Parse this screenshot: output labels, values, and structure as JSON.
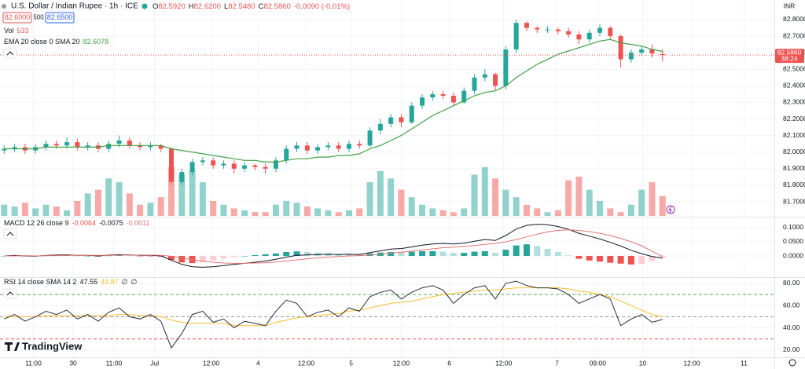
{
  "chart_data": [
    {
      "type": "candlestick",
      "title": "U.S. Dollar / Indian Rupee · 1h · ICE",
      "quote": [
        {
          "key": "O",
          "value": "82.5920"
        },
        {
          "key": "H",
          "value": "82.6200"
        },
        {
          "key": "L",
          "value": "82.5480"
        },
        {
          "key": "C",
          "value": "82.5860"
        }
      ],
      "change": "-0.0090 (-0.01%)",
      "bid": "82.6000",
      "spread": "500",
      "ask": "82.6500",
      "currency": "INR",
      "last_price_label": "82.5860",
      "countdown": "38:24",
      "up_color": "#26a69a",
      "down_color": "#ef5350",
      "open": [
        82.01,
        82.02,
        82.03,
        82.01,
        82.03,
        82.05,
        82.04,
        82.06,
        82.03,
        82.04,
        82.02,
        82.05,
        82.07,
        82.04,
        82.03,
        82.04,
        82.02,
        81.82,
        81.88,
        81.94,
        81.95,
        81.92,
        81.93,
        81.9,
        81.92,
        81.91,
        81.9,
        81.95,
        82.02,
        82.04,
        82.01,
        82.03,
        82.04,
        82.02,
        82.05,
        82.04,
        82.13,
        82.17,
        82.21,
        82.18,
        82.28,
        82.33,
        82.35,
        82.34,
        82.3,
        82.37,
        82.45,
        82.47,
        82.4,
        82.62,
        82.78,
        82.75,
        82.74,
        82.74,
        82.73,
        82.71,
        82.68,
        82.72,
        82.75,
        82.7,
        82.56,
        82.6,
        82.62,
        82.592
      ],
      "high": [
        82.04,
        82.05,
        82.05,
        82.05,
        82.07,
        82.07,
        82.09,
        82.08,
        82.06,
        82.06,
        82.07,
        82.1,
        82.09,
        82.06,
        82.06,
        82.05,
        82.03,
        81.9,
        81.96,
        81.97,
        81.97,
        81.95,
        81.95,
        81.94,
        81.93,
        81.93,
        81.97,
        82.04,
        82.06,
        82.06,
        82.05,
        82.06,
        82.06,
        82.07,
        82.07,
        82.15,
        82.2,
        82.23,
        82.23,
        82.3,
        82.35,
        82.37,
        82.37,
        82.36,
        82.39,
        82.47,
        82.5,
        82.48,
        82.64,
        82.8,
        82.79,
        82.76,
        82.76,
        82.75,
        82.75,
        82.73,
        82.74,
        82.77,
        82.76,
        82.71,
        82.62,
        82.64,
        82.65,
        82.62
      ],
      "low": [
        81.99,
        82.0,
        81.99,
        81.99,
        82.01,
        82.02,
        82.02,
        82.01,
        82.01,
        82.0,
        82.0,
        82.03,
        82.02,
        82.01,
        82.01,
        82.0,
        81.8,
        81.8,
        81.86,
        81.92,
        81.9,
        81.9,
        81.87,
        81.88,
        81.89,
        81.87,
        81.88,
        81.93,
        82.0,
        81.99,
        81.99,
        82.01,
        82.0,
        82.0,
        82.02,
        82.03,
        82.11,
        82.15,
        82.15,
        82.17,
        82.26,
        82.31,
        82.32,
        82.28,
        82.29,
        82.35,
        82.43,
        82.37,
        82.38,
        82.6,
        82.73,
        82.72,
        82.72,
        82.71,
        82.69,
        82.65,
        82.66,
        82.7,
        82.68,
        82.51,
        82.54,
        82.58,
        82.57,
        82.548
      ],
      "close": [
        82.02,
        82.03,
        82.01,
        82.03,
        82.05,
        82.04,
        82.06,
        82.03,
        82.04,
        82.02,
        82.05,
        82.07,
        82.04,
        82.03,
        82.04,
        82.02,
        81.82,
        81.88,
        81.94,
        81.95,
        81.92,
        81.93,
        81.9,
        81.92,
        81.91,
        81.9,
        81.95,
        82.02,
        82.04,
        82.01,
        82.03,
        82.04,
        82.02,
        82.05,
        82.04,
        82.13,
        82.17,
        82.21,
        82.18,
        82.28,
        82.33,
        82.35,
        82.34,
        82.3,
        82.37,
        82.45,
        82.47,
        82.4,
        82.62,
        82.78,
        82.75,
        82.74,
        82.74,
        82.73,
        82.71,
        82.68,
        82.72,
        82.75,
        82.7,
        82.56,
        82.6,
        82.62,
        82.595,
        82.586
      ],
      "volume": {
        "name": "Vol",
        "values": [
          300,
          250,
          350,
          200,
          300,
          250,
          150,
          400,
          600,
          700,
          1000,
          900,
          600,
          300,
          350,
          500,
          1300,
          1100,
          1200,
          900,
          400,
          300,
          200,
          150,
          100,
          100,
          300,
          400,
          350,
          250,
          200,
          150,
          100,
          150,
          200,
          900,
          1200,
          1000,
          700,
          500,
          300,
          200,
          150,
          100,
          200,
          1100,
          1300,
          1000,
          700,
          500,
          300,
          200,
          100,
          150,
          950,
          1050,
          700,
          400,
          200,
          100,
          300,
          700,
          900,
          533
        ]
      },
      "ema": {
        "name": "EMA 20 close 0 SMA 20",
        "color": "#43a047",
        "values": [
          82.02,
          82.02,
          82.02,
          82.02,
          82.03,
          82.03,
          82.03,
          82.03,
          82.03,
          82.03,
          82.04,
          82.04,
          82.04,
          82.04,
          82.04,
          82.04,
          82.02,
          82.01,
          82.0,
          81.99,
          81.98,
          81.97,
          81.96,
          81.95,
          81.95,
          81.94,
          81.94,
          81.95,
          81.96,
          81.96,
          81.97,
          81.97,
          81.98,
          81.98,
          81.99,
          82.02,
          82.04,
          82.07,
          82.1,
          82.14,
          82.18,
          82.22,
          82.25,
          82.28,
          82.31,
          82.34,
          82.36,
          82.37,
          82.4,
          82.45,
          82.49,
          82.53,
          82.56,
          82.59,
          82.61,
          82.63,
          82.65,
          82.67,
          82.68,
          82.66,
          82.65,
          82.64,
          82.62,
          82.6078
        ]
      },
      "ylim": [
        81.615,
        82.918
      ],
      "yticks": [
        {
          "value": 82.8,
          "label": "82.8000"
        },
        {
          "value": 82.7,
          "label": "82.7000"
        },
        {
          "value": 82.6,
          "label": "82.6000"
        },
        {
          "value": 82.5,
          "label": "82.5000"
        },
        {
          "value": 82.4,
          "label": "82.4000"
        },
        {
          "value": 82.3,
          "label": "82.3000"
        },
        {
          "value": 82.2,
          "label": "82.2000"
        },
        {
          "value": 82.1,
          "label": "82.1000"
        },
        {
          "value": 82,
          "label": "82.0000"
        },
        {
          "value": 81.9,
          "label": "81.9000"
        },
        {
          "value": 81.8,
          "label": "81.8000"
        },
        {
          "value": 81.7,
          "label": "81.7000"
        }
      ]
    },
    {
      "type": "macd",
      "name": "MACD 12 26 close 9",
      "histogram": {
        "values": [
          0,
          0.002,
          -0.001,
          -0.001,
          0.001,
          0.002,
          0.002,
          0,
          0,
          -0.002,
          0.001,
          0.002,
          0.001,
          -0.001,
          -0.001,
          -0.002,
          -0.014,
          -0.023,
          -0.025,
          -0.022,
          -0.016,
          -0.009,
          -0.004,
          0,
          0.003,
          0.006,
          0.009,
          0.014,
          0.016,
          0.014,
          0.012,
          0.01,
          0.007,
          0.006,
          0.004,
          0.009,
          0.012,
          0.014,
          0.013,
          0.015,
          0.017,
          0.017,
          0.015,
          0.011,
          0.011,
          0.015,
          0.017,
          0.011,
          0.022,
          0.037,
          0.041,
          0.035,
          0.025,
          0.014,
          0.002,
          -0.01,
          -0.016,
          -0.02,
          -0.024,
          -0.027,
          -0.03,
          -0.028,
          -0.018,
          -0.0064
        ]
      },
      "macd": {
        "color": "#131722",
        "values": [
          0,
          0.002,
          0,
          -0.001,
          0.002,
          0.003,
          0.004,
          0.002,
          0.002,
          0,
          0.003,
          0.005,
          0.004,
          0.002,
          0.002,
          0,
          -0.015,
          -0.03,
          -0.038,
          -0.04,
          -0.038,
          -0.034,
          -0.03,
          -0.026,
          -0.022,
          -0.018,
          -0.012,
          -0.004,
          0.002,
          0.004,
          0.005,
          0.006,
          0.005,
          0.006,
          0.005,
          0.012,
          0.018,
          0.024,
          0.026,
          0.032,
          0.038,
          0.042,
          0.044,
          0.042,
          0.045,
          0.052,
          0.058,
          0.055,
          0.072,
          0.095,
          0.108,
          0.112,
          0.11,
          0.104,
          0.094,
          0.08,
          0.07,
          0.06,
          0.048,
          0.035,
          0.02,
          0.008,
          -0.002,
          -0.0075
        ]
      },
      "signal": {
        "color": "#e57373",
        "values": [
          0,
          0,
          0.001,
          0,
          0.001,
          0.001,
          0.002,
          0.002,
          0.002,
          0.002,
          0.002,
          0.003,
          0.003,
          0.003,
          0.003,
          0.002,
          -0.001,
          -0.007,
          -0.013,
          -0.018,
          -0.022,
          -0.025,
          -0.026,
          -0.026,
          -0.025,
          -0.024,
          -0.021,
          -0.018,
          -0.014,
          -0.01,
          -0.007,
          -0.004,
          -0.002,
          0,
          0.001,
          0.003,
          0.006,
          0.01,
          0.013,
          0.017,
          0.021,
          0.025,
          0.029,
          0.031,
          0.034,
          0.037,
          0.041,
          0.044,
          0.05,
          0.058,
          0.067,
          0.077,
          0.085,
          0.09,
          0.092,
          0.09,
          0.086,
          0.08,
          0.072,
          0.062,
          0.05,
          0.036,
          0.016,
          -0.0011
        ]
      },
      "ylim": [
        -0.072,
        0.133
      ],
      "yticks": [
        {
          "value": 0.1,
          "label": "0.1000"
        },
        {
          "value": 0.05,
          "label": "0.0500"
        },
        {
          "value": 0,
          "label": "0.0000"
        }
      ]
    },
    {
      "type": "rsi",
      "name": "RSI 14 close SMA 14 2",
      "rsi": {
        "color": "#2a2e39",
        "values": [
          48,
          52,
          46,
          50,
          55,
          52,
          56,
          48,
          52,
          46,
          54,
          58,
          50,
          48,
          52,
          46,
          22,
          35,
          52,
          55,
          45,
          48,
          40,
          46,
          44,
          42,
          55,
          65,
          62,
          50,
          54,
          56,
          50,
          58,
          55,
          68,
          72,
          74,
          66,
          72,
          76,
          78,
          74,
          62,
          70,
          76,
          78,
          66,
          80,
          82,
          78,
          76,
          76,
          75,
          70,
          62,
          66,
          70,
          66,
          42,
          48,
          52,
          45,
          47.55
        ]
      },
      "sma": {
        "color": "#fbc02d",
        "values": [
          50,
          50,
          50,
          50,
          51,
          51,
          51,
          51,
          51,
          51,
          51,
          52,
          52,
          51,
          51,
          50,
          47,
          45,
          44,
          44,
          44,
          44,
          42,
          42,
          42,
          42,
          45,
          47,
          49,
          50,
          51,
          52,
          53,
          55,
          56,
          58,
          60,
          62,
          63,
          64,
          66,
          68,
          70,
          71,
          72,
          73,
          74,
          74,
          75,
          76,
          76,
          76,
          76,
          76,
          75,
          73,
          72,
          70,
          68,
          64,
          60,
          56,
          52,
          49.87
        ]
      },
      "extra_values": [
        "∅",
        "∅"
      ],
      "bands": [
        {
          "value": 70,
          "color": "#4caf50"
        },
        {
          "value": 50,
          "color": "#9598a1"
        },
        {
          "value": 30,
          "color": "#ef5350"
        }
      ],
      "ylim": [
        13.6,
        84.9
      ],
      "yticks": [
        {
          "value": 80,
          "label": "80.00"
        },
        {
          "value": 60,
          "label": "60.00"
        },
        {
          "value": 40,
          "label": "40.00"
        },
        {
          "value": 20,
          "label": "20.00"
        }
      ],
      "xlim": [
        -0.4,
        73.7
      ],
      "xticks": [
        {
          "value": 2.8,
          "label": "11:00"
        },
        {
          "value": 6.6,
          "label": "30"
        },
        {
          "value": 10.5,
          "label": "11:00"
        },
        {
          "value": 14.4,
          "label": "Jul"
        },
        {
          "value": 19.8,
          "label": "12:00"
        },
        {
          "value": 24.3,
          "label": "4"
        },
        {
          "value": 28.9,
          "label": "12:00"
        },
        {
          "value": 33.2,
          "label": "5"
        },
        {
          "value": 38.0,
          "label": "12:00"
        },
        {
          "value": 42.6,
          "label": "6"
        },
        {
          "value": 47.8,
          "label": "12:00"
        },
        {
          "value": 52.9,
          "label": "7"
        },
        {
          "value": 56.8,
          "label": "09:00"
        },
        {
          "value": 61.1,
          "label": "10"
        },
        {
          "value": 65.8,
          "label": "12:00"
        },
        {
          "value": 70.8,
          "label": "11"
        }
      ]
    }
  ],
  "watermark": "TradingView"
}
